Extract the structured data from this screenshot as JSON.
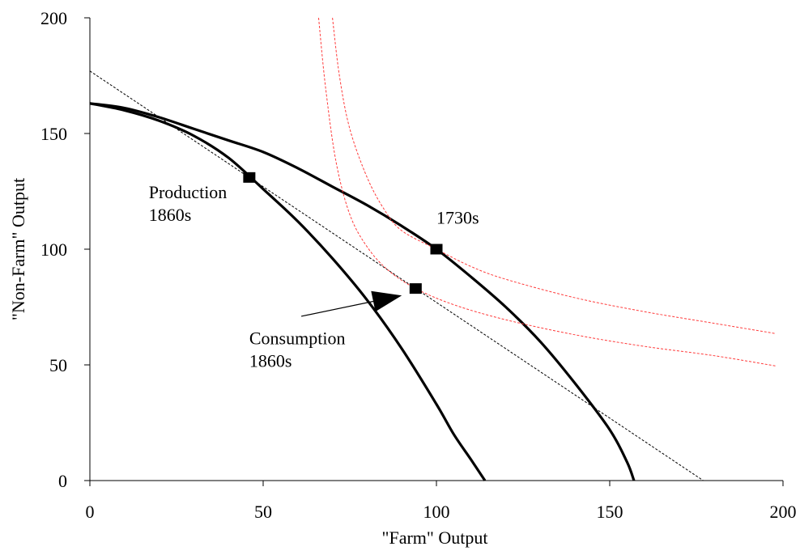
{
  "chart_data": {
    "type": "line",
    "title": "",
    "xlabel": "\"Farm\" Output",
    "ylabel": "\"Non-Farm\" Output",
    "xlim": [
      0,
      200
    ],
    "ylim": [
      0,
      200
    ],
    "xticks": [
      0,
      50,
      100,
      150,
      200
    ],
    "yticks": [
      0,
      50,
      100,
      150,
      200
    ],
    "xtick_labels": [
      "0",
      "50",
      "100",
      "150",
      "200"
    ],
    "ytick_labels": [
      "0",
      "50",
      "100",
      "150",
      "200"
    ],
    "grid": false,
    "legend": "none",
    "series": [
      {
        "style": "solid",
        "color": "#000000",
        "points": [
          [
            0,
            163
          ],
          [
            10,
            160
          ],
          [
            20,
            155.5
          ],
          [
            30,
            149
          ],
          [
            40,
            139.5
          ],
          [
            50,
            126
          ],
          [
            60,
            112
          ],
          [
            70,
            96
          ],
          [
            80,
            78
          ],
          [
            90,
            57
          ],
          [
            100,
            33
          ],
          [
            105,
            20
          ],
          [
            110,
            9
          ],
          [
            114,
            0
          ]
        ]
      },
      {
        "style": "solid",
        "color": "#000000",
        "points": [
          [
            0,
            163
          ],
          [
            10,
            161
          ],
          [
            20,
            157
          ],
          [
            30,
            152
          ],
          [
            40,
            147
          ],
          [
            50,
            142
          ],
          [
            60,
            135
          ],
          [
            70,
            127
          ],
          [
            80,
            119
          ],
          [
            90,
            110
          ],
          [
            100,
            100
          ],
          [
            110,
            88
          ],
          [
            120,
            75
          ],
          [
            130,
            60
          ],
          [
            140,
            42
          ],
          [
            150,
            22
          ],
          [
            155,
            8
          ],
          [
            157,
            0
          ]
        ]
      },
      {
        "style": "dashed",
        "color": "#000000",
        "points": [
          [
            0,
            177
          ],
          [
            177,
            0
          ]
        ]
      },
      {
        "style": "dashed",
        "color": "#ff3b3b",
        "points": [
          [
            70,
            200
          ],
          [
            72,
            175
          ],
          [
            75,
            152
          ],
          [
            80,
            131
          ],
          [
            85,
            117
          ],
          [
            90,
            108
          ],
          [
            100,
            100
          ],
          [
            110,
            92.5
          ],
          [
            120,
            87
          ],
          [
            140,
            79
          ],
          [
            160,
            73
          ],
          [
            180,
            68
          ],
          [
            198,
            63.5
          ]
        ]
      },
      {
        "style": "dashed",
        "color": "#ff3b3b",
        "points": [
          [
            66,
            200
          ],
          [
            68,
            170
          ],
          [
            71,
            138
          ],
          [
            75,
            115
          ],
          [
            80,
            101
          ],
          [
            86,
            91
          ],
          [
            94,
            83
          ],
          [
            105,
            76
          ],
          [
            120,
            69.5
          ],
          [
            140,
            63
          ],
          [
            160,
            58
          ],
          [
            180,
            54
          ],
          [
            198,
            49.5
          ]
        ]
      }
    ],
    "markers": [
      {
        "x": 46,
        "y": 131
      },
      {
        "x": 100,
        "y": 100
      },
      {
        "x": 94,
        "y": 83
      }
    ],
    "annotations": [
      {
        "lines": [
          "Production",
          "1860s"
        ],
        "x": 17,
        "y": 122
      },
      {
        "lines": [
          "1730s"
        ],
        "x": 100,
        "y": 111
      },
      {
        "lines": [
          "Consumption",
          "1860s"
        ],
        "x": 46,
        "y": 59
      }
    ],
    "arrow": {
      "from": [
        61,
        71
      ],
      "to": [
        90,
        80
      ]
    }
  }
}
